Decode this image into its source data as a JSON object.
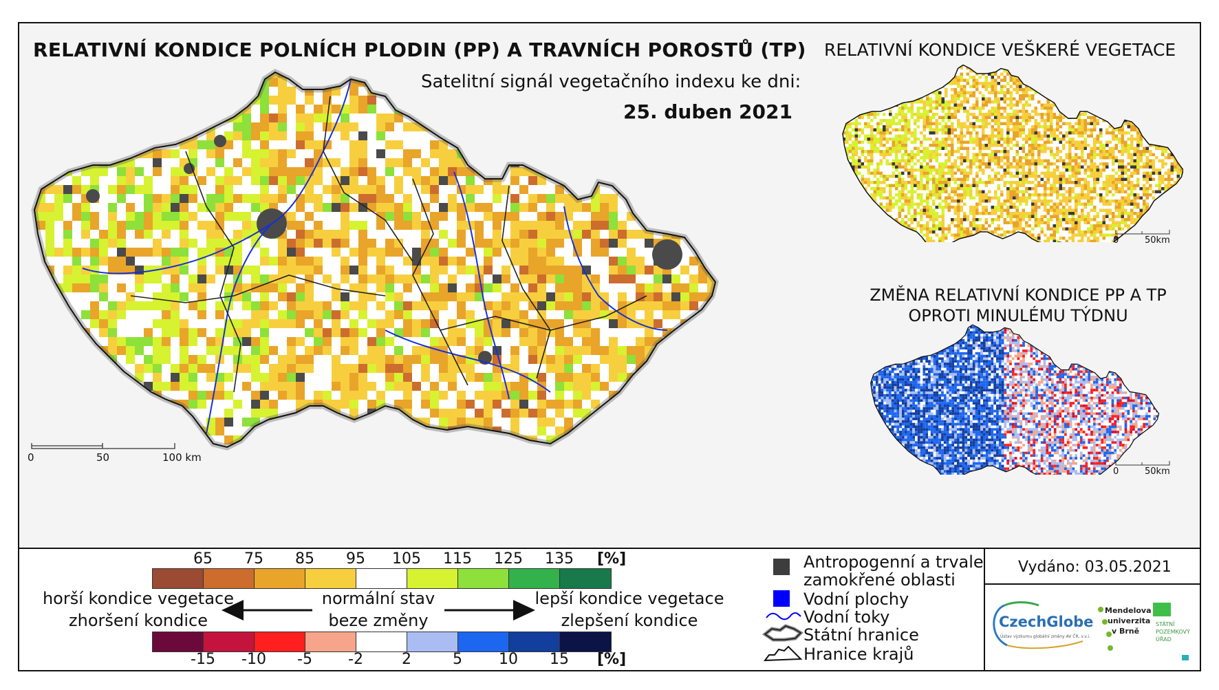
{
  "header": {
    "title": "RELATIVNÍ KONDICE POLNÍCH PLODIN (PP) A TRAVNÍCH POROSTŮ (TP)",
    "subtitle": "Satelitní signál vegetačního indexu ke dni:",
    "date": "25. duben 2021"
  },
  "inset_vegetation": {
    "title": "RELATIVNÍ KONDICE VEŠKERÉ VEGETACE",
    "scale_0": "0",
    "scale_50": "50km"
  },
  "inset_change": {
    "title_line1": "ZMĚNA RELATIVNÍ KONDICE PP A TP",
    "title_line2": "OPROTI MINULÉMU TÝDNU",
    "scale_0": "0",
    "scale_50": "50km"
  },
  "main_scale": {
    "label_0": "0",
    "label_50": "50",
    "label_100": "100 km"
  },
  "legend_condition": {
    "ticks": [
      "65",
      "75",
      "85",
      "95",
      "105",
      "115",
      "125",
      "135"
    ],
    "unit": "[%]",
    "colors": [
      "#9b4a33",
      "#cc6d2e",
      "#e9a42a",
      "#f7cf3e",
      "#ffffff",
      "#d7f230",
      "#8ee03a",
      "#33b24c",
      "#187a4a"
    ]
  },
  "legend_change": {
    "ticks": [
      "-15",
      "-10",
      "-5",
      "-2",
      "2",
      "5",
      "10",
      "15"
    ],
    "unit": "[%]",
    "colors": [
      "#6b0a3a",
      "#c4143d",
      "#ff1f1f",
      "#f7a58a",
      "#ffffff",
      "#a9bdf2",
      "#1c66f0",
      "#123e9e",
      "#0c1347"
    ]
  },
  "legend_text": {
    "worse_line1": "horší kondice vegetace",
    "worse_line2": "zhoršení kondice",
    "normal_line1": "normální stav",
    "normal_line2": "beze změny",
    "better_line1": "lepší kondice vegetace",
    "better_line2": "zlepšení kondice"
  },
  "symbols": {
    "anthro_line1": "Antropogenní a trvale",
    "anthro_line2": "zamokřené oblasti",
    "water_bodies": "Vodní plochy",
    "rivers": "Vodní toky",
    "state_border": "Státní hranice",
    "region_border": "Hranice krajů"
  },
  "issued": "Vydáno: 03.05.2021",
  "logos": {
    "czechglobe": "CzechGlobe",
    "czechglobe_sub": "Ústav výzkumu globální změny AV ČR, v.v.i.",
    "mendel_line1": "Mendelova",
    "mendel_line2": "univerzita",
    "mendel_line3": "v Brně",
    "spu_line1": "STÁTNÍ",
    "spu_line2": "POZEMKOVÝ",
    "spu_line3": "ÚŘAD"
  }
}
